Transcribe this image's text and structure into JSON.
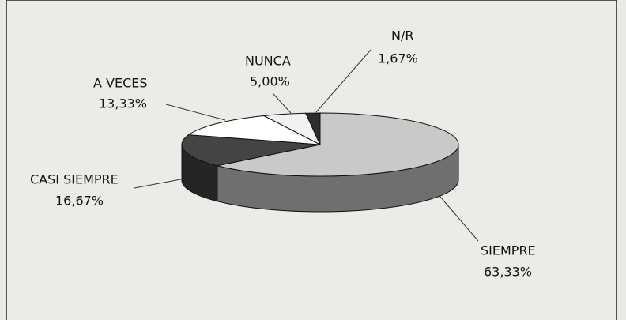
{
  "chart_data": {
    "type": "pie",
    "categories": [
      "SIEMPRE",
      "CASI SIEMPRE",
      "A VECES",
      "NUNCA",
      "N/R"
    ],
    "values": [
      63.33,
      16.67,
      13.33,
      5.0,
      1.67
    ],
    "value_labels": [
      "63,33%",
      "16,67%",
      "13,33%",
      "5,00%",
      "1,67%"
    ],
    "colors": [
      "#c9c9c9",
      "#444444",
      "#ffffff",
      "#f2f2f2",
      "#2e2e2e"
    ]
  }
}
